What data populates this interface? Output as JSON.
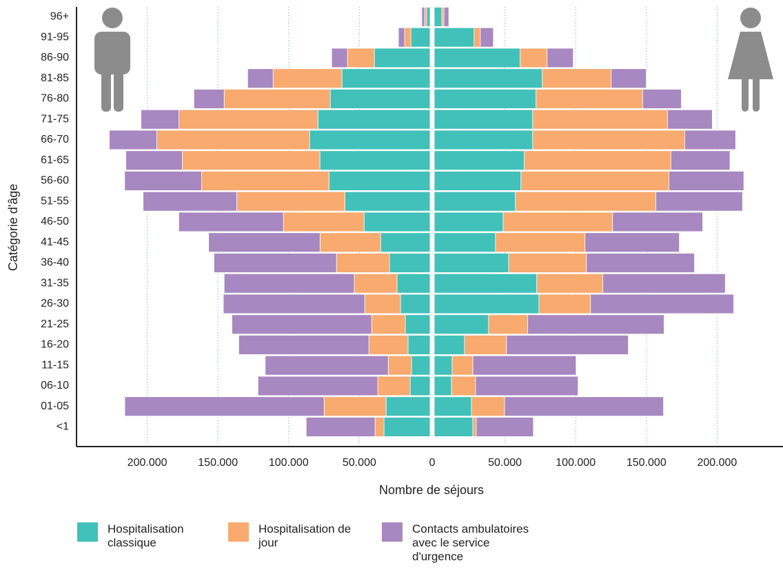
{
  "chart_data": {
    "type": "pyramid",
    "xlabel": "Nombre de séjours",
    "ylabel": "Catégorie d'âge",
    "categories": [
      "96+",
      "91-95",
      "86-90",
      "81-85",
      "76-80",
      "71-75",
      "66-70",
      "61-65",
      "56-60",
      "51-55",
      "46-50",
      "41-45",
      "36-40",
      "31-35",
      "26-30",
      "21-25",
      "16-20",
      "11-15",
      "06-10",
      "01-05",
      "<1"
    ],
    "series": [
      {
        "name": "Hospitalisation classique",
        "color": "#41c1b9",
        "left": [
          2400,
          13600,
          39400,
          62300,
          70600,
          79300,
          85200,
          77900,
          71500,
          60300,
          46700,
          35000,
          28700,
          23400,
          20900,
          17500,
          15600,
          13100,
          14100,
          31100,
          32600
        ],
        "right": [
          5400,
          28200,
          60800,
          76400,
          72000,
          69600,
          69600,
          63700,
          61300,
          57400,
          48700,
          43300,
          52600,
          72500,
          74000,
          38400,
          21400,
          12700,
          12200,
          26300,
          27300
        ]
      },
      {
        "name": "Hospitalisation de jour",
        "color": "#f8aa6f",
        "left": [
          1500,
          4400,
          19000,
          48700,
          75000,
          98300,
          108000,
          97300,
          90000,
          76400,
          57000,
          42800,
          37500,
          30200,
          25300,
          23800,
          27700,
          16500,
          22900,
          43800,
          6300
        ],
        "right": [
          1500,
          4400,
          19000,
          48700,
          75400,
          95400,
          107500,
          103600,
          104600,
          99300,
          77400,
          63300,
          55000,
          46700,
          36500,
          27700,
          29700,
          14600,
          17000,
          23400,
          2400
        ]
      },
      {
        "name": "Contacts ambulatoires avec le service d'urgence",
        "color": "#a888c0",
        "left": [
          2000,
          4400,
          11200,
          18000,
          21400,
          26800,
          33600,
          39900,
          54500,
          66200,
          74000,
          78800,
          86600,
          92000,
          100000,
          98800,
          92000,
          87000,
          84700,
          141000,
          48700
        ],
        "right": [
          3400,
          9200,
          18500,
          24800,
          27300,
          31600,
          36000,
          41800,
          53000,
          61300,
          63700,
          66700,
          76400,
          86600,
          101200,
          96400,
          86100,
          73000,
          72500,
          112400,
          40400
        ]
      }
    ],
    "xlim": [
      -250000,
      250000
    ],
    "xticks": [
      {
        "value": -200000,
        "label": "200.000"
      },
      {
        "value": -150000,
        "label": "150.000"
      },
      {
        "value": -100000,
        "label": "100.000"
      },
      {
        "value": -50000,
        "label": "50.000"
      },
      0,
      {
        "value": 50000,
        "label": "50.000"
      },
      {
        "value": 100000,
        "label": "100.000"
      },
      {
        "value": 150000,
        "label": "150.000"
      },
      {
        "value": 200000,
        "label": "200.000"
      }
    ],
    "grid": true
  }
}
